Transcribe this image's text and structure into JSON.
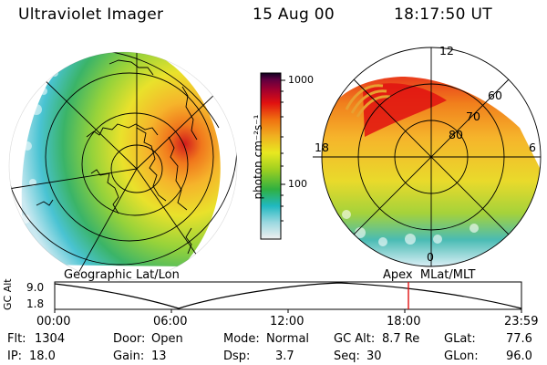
{
  "header": {
    "instrument": "Ultraviolet Imager",
    "date": "15 Aug 00",
    "time": "18:17:50 UT"
  },
  "colorbar": {
    "unit": "photon cm⁻²s⁻¹",
    "tick_high": "1000",
    "tick_low": "100"
  },
  "geo_panel": {
    "caption": "Geographic Lat/Lon"
  },
  "apex_panel": {
    "caption": "Apex  MLat/MLT",
    "mlt_top": "12",
    "mlt_left": "18",
    "mlt_right": "6",
    "mlt_bottom": "0",
    "lat_60": "60",
    "lat_70": "70",
    "lat_80": "80"
  },
  "altitude_plot": {
    "ylabel": "GC Alt",
    "ytick_high": "9.0",
    "ytick_low": "1.8",
    "xticks": [
      "00:00",
      "06:00",
      "12:00",
      "18:00",
      "23:59"
    ],
    "current_time_marker": "18:17"
  },
  "status": {
    "flt_label": "Flt:",
    "flt_value": "1304",
    "ip_label": "IP:",
    "ip_value": "18.0",
    "door_label": "Door:",
    "door_value": "Open",
    "gain_label": "Gain:",
    "gain_value": "13",
    "mode_label": "Mode:",
    "mode_value": "Normal",
    "dsp_label": "Dsp:",
    "dsp_value": "3.7",
    "gcalt_label": "GC Alt:",
    "gcalt_value": "8.7 Re",
    "seq_label": "Seq:",
    "seq_value": "30",
    "glat_label": "GLat:",
    "glat_value": "77.6",
    "glon_label": "GLon:",
    "glon_value": "96.0"
  },
  "colors": {
    "aurora_low": "#2ab0c8",
    "aurora_mid": "#e8e81a",
    "aurora_high": "#f08a10",
    "aurora_peak": "#d81010",
    "marker": "#e01010"
  }
}
